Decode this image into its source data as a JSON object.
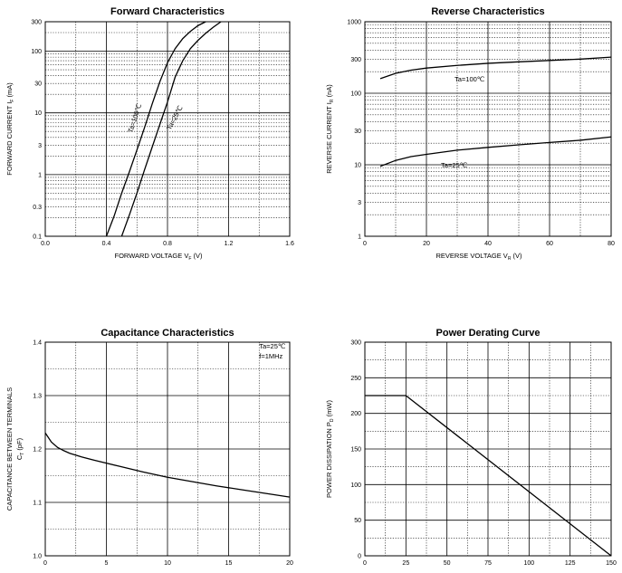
{
  "chart_data": [
    {
      "type": "line",
      "title": "Forward    Characteristics",
      "xlabel": "FORWARD VOLTAGE",
      "xlabel_sym": "V",
      "xlabel_sub": "F",
      "xlabel_unit": "(V)",
      "ylabel": "FORWARD CURRENT",
      "ylabel_sym": "I",
      "ylabel_sub": "F",
      "ylabel_unit": "(mA)",
      "xscale": "linear",
      "yscale": "log",
      "xlim": [
        0.0,
        1.6
      ],
      "ylim": [
        0.1,
        300
      ],
      "x_ticks": [
        "0.0",
        "0.4",
        "0.8",
        "1.2",
        "1.6"
      ],
      "y_ticks": [
        "0.1",
        "0.3",
        "1",
        "3",
        "10",
        "30",
        "100",
        "300"
      ],
      "grid": true,
      "series": [
        {
          "name": "Ta=100℃",
          "x": [
            0.4,
            0.45,
            0.5,
            0.55,
            0.6,
            0.65,
            0.7,
            0.75,
            0.8,
            0.85,
            0.9,
            0.95,
            1.0,
            1.05
          ],
          "y": [
            0.1,
            0.21,
            0.5,
            1.1,
            2.5,
            5.8,
            14,
            32,
            65,
            110,
            160,
            210,
            260,
            300
          ]
        },
        {
          "name": "Ta=25℃",
          "x": [
            0.5,
            0.55,
            0.6,
            0.65,
            0.7,
            0.75,
            0.8,
            0.85,
            0.9,
            0.95,
            1.0,
            1.05,
            1.1,
            1.15
          ],
          "y": [
            0.1,
            0.22,
            0.5,
            1.2,
            2.8,
            6.5,
            15,
            38,
            70,
            110,
            150,
            195,
            245,
            300
          ]
        }
      ]
    },
    {
      "type": "line",
      "title": "Reverse    Characteristics",
      "xlabel": "REVERSE VOLTAGE",
      "xlabel_sym": "V",
      "xlabel_sub": "R",
      "xlabel_unit": "(V)",
      "ylabel": "REVERSE CURRENT",
      "ylabel_sym": "I",
      "ylabel_sub": "R",
      "ylabel_unit": "(nA)",
      "xscale": "linear",
      "yscale": "log",
      "xlim": [
        0,
        80
      ],
      "ylim": [
        1,
        1000
      ],
      "x_ticks": [
        "0",
        "20",
        "40",
        "60",
        "80"
      ],
      "y_ticks": [
        "1",
        "3",
        "10",
        "30",
        "100",
        "300",
        "1000"
      ],
      "grid": true,
      "series": [
        {
          "name": "Ta=100℃",
          "x": [
            5,
            10,
            15,
            20,
            30,
            40,
            50,
            60,
            70,
            80
          ],
          "y": [
            160,
            190,
            210,
            225,
            245,
            262,
            275,
            287,
            300,
            320
          ]
        },
        {
          "name": "Ta=25℃",
          "x": [
            5,
            10,
            15,
            20,
            30,
            40,
            50,
            60,
            70,
            80
          ],
          "y": [
            9.5,
            11.5,
            13,
            14,
            16,
            17.5,
            19,
            20.5,
            22,
            24.5
          ]
        }
      ]
    },
    {
      "type": "line",
      "title": "Capacitance Characteristics",
      "xlabel": "",
      "ylabel": "CAPACITANCE BETWEEN TERMINALS",
      "ylabel_sym": "C",
      "ylabel_sub": "T",
      "ylabel_unit": "(pF)",
      "xscale": "linear",
      "yscale": "linear",
      "xlim": [
        0,
        20
      ],
      "ylim": [
        1.0,
        1.4
      ],
      "x_ticks": [
        "0",
        "5",
        "10",
        "15",
        "20"
      ],
      "y_ticks": [
        "1.0",
        "1.1",
        "1.2",
        "1.3",
        "1.4"
      ],
      "grid": true,
      "annotations": [
        "Ta=25℃",
        "f=1MHz"
      ],
      "series": [
        {
          "name": "",
          "x": [
            0,
            0.5,
            1,
            1.5,
            2,
            3,
            4,
            6,
            8,
            10,
            12,
            14,
            16,
            18,
            20
          ],
          "y": [
            1.23,
            1.213,
            1.203,
            1.197,
            1.192,
            1.185,
            1.179,
            1.168,
            1.157,
            1.147,
            1.139,
            1.131,
            1.124,
            1.117,
            1.11
          ]
        }
      ]
    },
    {
      "type": "line",
      "title": "Power Derating Curve",
      "xlabel": "",
      "ylabel": "POWER DISSIPATION",
      "ylabel_sym": "P",
      "ylabel_sub": "D",
      "ylabel_unit": "(mW)",
      "xscale": "linear",
      "yscale": "linear",
      "xlim": [
        0,
        150
      ],
      "ylim": [
        0,
        300
      ],
      "x_ticks": [
        "0",
        "25",
        "50",
        "75",
        "100",
        "125",
        "150"
      ],
      "y_ticks": [
        "0",
        "50",
        "100",
        "150",
        "200",
        "250",
        "300"
      ],
      "grid": true,
      "series": [
        {
          "name": "",
          "x": [
            0,
            25,
            150
          ],
          "y": [
            225,
            225,
            0
          ]
        }
      ]
    }
  ]
}
